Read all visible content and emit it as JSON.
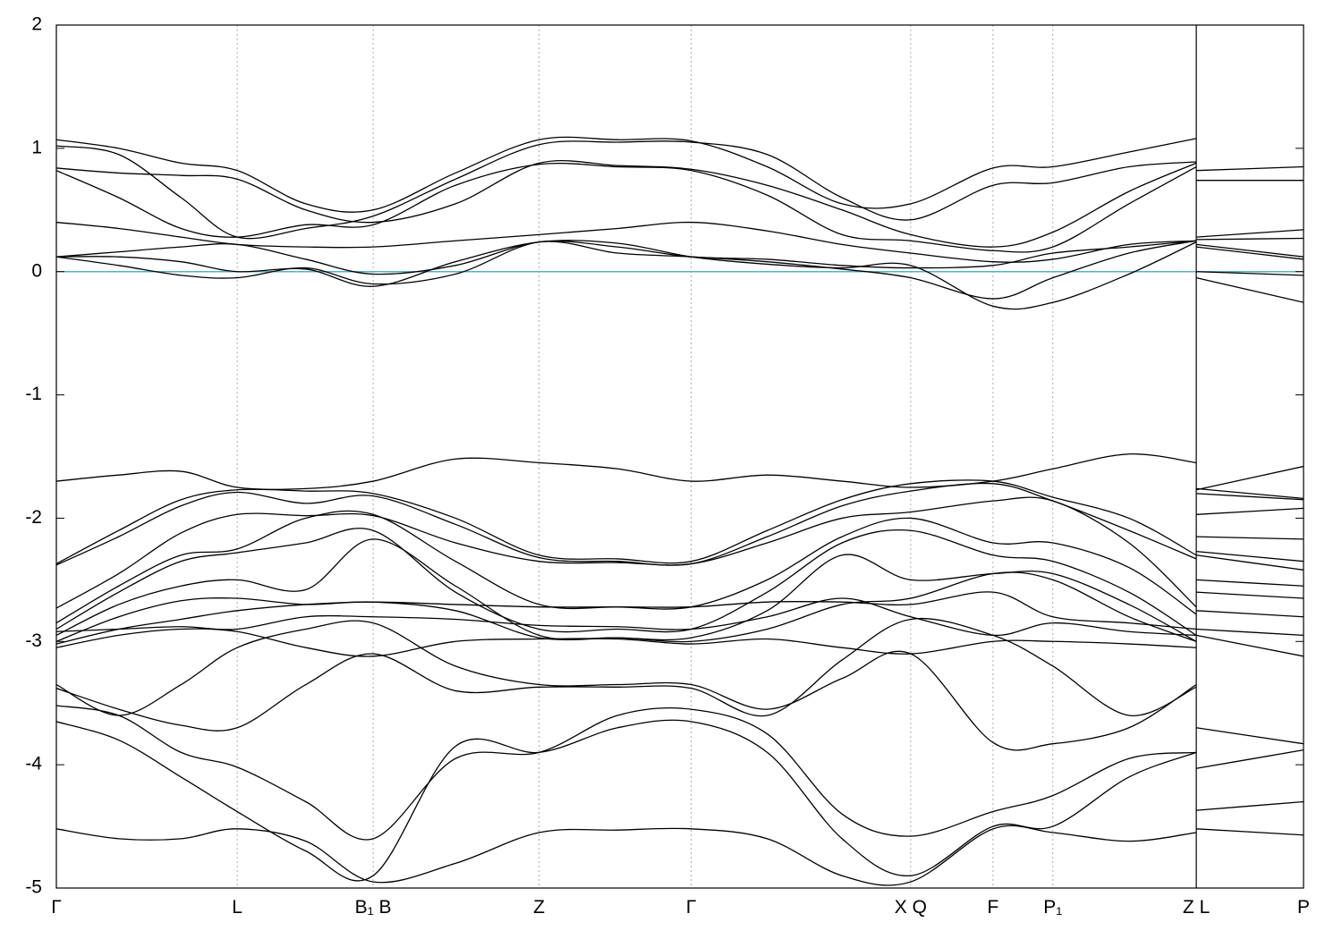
{
  "chart_data": {
    "type": "line",
    "x": [
      0,
      0.05,
      0.1,
      0.145,
      0.2,
      0.254,
      0.32,
      0.387,
      0.45,
      0.509,
      0.57,
      0.63,
      0.685,
      0.751,
      0.799,
      0.86,
      0.914,
      0.914,
      0.914,
      1.0
    ],
    "xlim": [
      0,
      1
    ],
    "xticks": [
      {
        "value": 0,
        "label": "Γ"
      },
      {
        "value": 0.145,
        "label": "L"
      },
      {
        "value": 0.254,
        "label": "B₁ B"
      },
      {
        "value": 0.387,
        "label": "Z"
      },
      {
        "value": 0.509,
        "label": "Γ"
      },
      {
        "value": 0.685,
        "label": "X Q"
      },
      {
        "value": 0.751,
        "label": "F"
      },
      {
        "value": 0.799,
        "label": "P₁"
      },
      {
        "value": 0.914,
        "label": "Z L"
      },
      {
        "value": 1,
        "label": "P"
      }
    ],
    "path_breaks": [
      0.914
    ],
    "ylim": [
      -5,
      2
    ],
    "yticks": [
      -5,
      -4,
      -3,
      -2,
      -1,
      0,
      1,
      2
    ],
    "fermi_level": 0,
    "fermi_color": "#5aaec6",
    "color": "#000000",
    "grid": true,
    "series": [
      {
        "values": [
          1.07,
          1.0,
          0.88,
          0.82,
          0.55,
          0.5,
          0.8,
          1.07,
          1.07,
          1.06,
          0.85,
          0.55,
          0.55,
          0.84,
          0.85,
          0.97,
          1.08,
          null,
          0.82,
          0.85
        ]
      },
      {
        "values": [
          1.02,
          0.95,
          0.6,
          0.28,
          0.35,
          0.45,
          0.75,
          1.03,
          1.05,
          1.05,
          0.95,
          0.6,
          0.42,
          0.7,
          0.72,
          0.85,
          0.89,
          null,
          0.74,
          0.74
        ]
      },
      {
        "values": [
          0.84,
          0.8,
          0.78,
          0.75,
          0.5,
          0.4,
          0.55,
          0.88,
          0.86,
          0.83,
          0.7,
          0.5,
          0.3,
          0.2,
          0.32,
          0.65,
          0.88,
          null,
          0.28,
          0.34
        ]
      },
      {
        "values": [
          0.82,
          0.6,
          0.35,
          0.28,
          0.38,
          0.38,
          0.7,
          0.87,
          0.85,
          0.82,
          0.62,
          0.3,
          0.25,
          0.17,
          0.2,
          0.55,
          0.85,
          null,
          0.26,
          0.27
        ]
      },
      {
        "values": [
          0.4,
          0.35,
          0.28,
          0.22,
          0.2,
          0.2,
          0.25,
          0.3,
          0.35,
          0.4,
          0.33,
          0.22,
          0.15,
          0.08,
          0.1,
          0.22,
          0.25,
          null,
          0.22,
          0.12
        ]
      },
      {
        "values": [
          0.12,
          0.16,
          0.2,
          0.22,
          0.1,
          -0.02,
          0.05,
          0.24,
          0.2,
          0.12,
          0.1,
          0.05,
          0.03,
          0.05,
          0.15,
          0.2,
          0.25,
          null,
          0.2,
          0.1
        ]
      },
      {
        "values": [
          0.12,
          0.05,
          -0.03,
          -0.05,
          0.03,
          -0.1,
          -0.02,
          0.24,
          0.15,
          0.12,
          0.08,
          0.02,
          -0.05,
          -0.22,
          -0.05,
          0.15,
          0.25,
          null,
          -0.05,
          -0.25
        ]
      },
      {
        "values": [
          0.12,
          0.12,
          0.08,
          0,
          0.02,
          -0.12,
          0.08,
          0.24,
          0.23,
          0.12,
          0.06,
          0.03,
          0.05,
          -0.28,
          -0.25,
          -0.02,
          0.24,
          null,
          0.0,
          -0.03
        ]
      },
      {
        "values": [
          -1.7,
          -1.65,
          -1.62,
          -1.75,
          -1.76,
          -1.7,
          -1.52,
          -1.55,
          -1.6,
          -1.7,
          -1.65,
          -1.7,
          -1.75,
          -1.7,
          -1.6,
          -1.48,
          -1.55,
          null,
          -1.77,
          -1.58
        ]
      },
      {
        "values": [
          -2.37,
          -2.1,
          -1.85,
          -1.77,
          -1.78,
          -1.8,
          -2.0,
          -2.3,
          -2.33,
          -2.35,
          -2.1,
          -1.85,
          -1.72,
          -1.7,
          -1.83,
          -2.0,
          -2.3,
          null,
          -1.76,
          -1.84
        ]
      },
      {
        "values": [
          -2.38,
          -2.15,
          -1.9,
          -1.79,
          -1.88,
          -1.82,
          -2.05,
          -2.32,
          -2.35,
          -2.37,
          -2.15,
          -1.9,
          -1.78,
          -1.72,
          -1.86,
          -2.1,
          -2.33,
          null,
          -1.8,
          -1.85
        ]
      },
      {
        "values": [
          -2.73,
          -2.45,
          -2.12,
          -1.97,
          -1.98,
          -1.98,
          -2.2,
          -2.35,
          -2.36,
          -2.37,
          -2.2,
          -2.0,
          -1.95,
          -1.86,
          -1.86,
          -2.2,
          -2.72,
          null,
          -1.97,
          -1.92
        ]
      },
      {
        "values": [
          -2.85,
          -2.55,
          -2.3,
          -2.25,
          -2.0,
          -1.97,
          -2.35,
          -2.7,
          -2.72,
          -2.72,
          -2.5,
          -2.15,
          -2.0,
          -2.2,
          -2.2,
          -2.4,
          -2.78,
          null,
          -2.15,
          -2.17
        ]
      },
      {
        "values": [
          -2.9,
          -2.6,
          -2.35,
          -2.28,
          -2.2,
          -2.1,
          -2.6,
          -2.9,
          -2.9,
          -2.9,
          -2.6,
          -2.2,
          -2.1,
          -2.3,
          -2.35,
          -2.6,
          -2.95,
          null,
          -2.27,
          -2.35
        ]
      },
      {
        "values": [
          -2.95,
          -2.7,
          -2.55,
          -2.5,
          -2.58,
          -2.17,
          -2.55,
          -2.95,
          -2.97,
          -2.97,
          -2.75,
          -2.3,
          -2.5,
          -2.45,
          -2.45,
          -2.7,
          -3.0,
          null,
          -2.3,
          -2.42
        ]
      },
      {
        "values": [
          -3.0,
          -2.8,
          -2.67,
          -2.65,
          -2.7,
          -2.68,
          -2.75,
          -2.97,
          -2.97,
          -3.0,
          -2.9,
          -2.7,
          -2.65,
          -2.45,
          -2.5,
          -2.8,
          -3.0,
          null,
          -2.5,
          -2.55
        ]
      },
      {
        "values": [
          -3.02,
          -2.9,
          -2.82,
          -2.75,
          -2.7,
          -2.68,
          -2.7,
          -2.72,
          -2.72,
          -2.72,
          -2.68,
          -2.68,
          -2.7,
          -2.6,
          -2.8,
          -2.85,
          -2.9,
          null,
          -2.6,
          -2.65
        ]
      },
      {
        "values": [
          -2.92,
          -2.9,
          -2.88,
          -2.9,
          -2.8,
          -2.8,
          -2.82,
          -2.87,
          -2.88,
          -2.9,
          -2.8,
          -2.65,
          -2.8,
          -2.95,
          -2.85,
          -2.92,
          -2.95,
          null,
          -2.75,
          -2.8
        ]
      },
      {
        "values": [
          -3.05,
          -2.95,
          -2.9,
          -2.92,
          -3.05,
          -3.12,
          -3.0,
          -2.98,
          -2.98,
          -3.02,
          -2.98,
          -3.05,
          -3.1,
          -3.0,
          -3.0,
          -3.02,
          -3.05,
          null,
          -2.9,
          -2.95
        ]
      },
      {
        "values": [
          -3.35,
          -3.6,
          -3.35,
          -3.05,
          -2.9,
          -2.85,
          -3.2,
          -3.35,
          -3.35,
          -3.35,
          -3.55,
          -3.3,
          -3.1,
          -3.82,
          -3.83,
          -3.7,
          -3.35,
          null,
          -2.95,
          -3.12
        ]
      },
      {
        "values": [
          -3.38,
          -3.55,
          -3.68,
          -3.7,
          -3.35,
          -3.1,
          -3.4,
          -3.37,
          -3.37,
          -3.38,
          -3.6,
          -3.15,
          -2.82,
          -2.95,
          -3.2,
          -3.6,
          -3.37,
          null,
          -3.7,
          -3.83
        ]
      },
      {
        "values": [
          -3.52,
          -3.6,
          -3.9,
          -4.02,
          -4.3,
          -4.6,
          -3.95,
          -3.9,
          -3.6,
          -3.55,
          -3.75,
          -4.4,
          -4.58,
          -4.38,
          -4.25,
          -3.95,
          -3.9,
          null,
          -4.03,
          -3.88
        ]
      },
      {
        "values": [
          -3.65,
          -3.8,
          -4.1,
          -4.38,
          -4.7,
          -4.9,
          -3.85,
          -3.9,
          -3.7,
          -3.65,
          -3.9,
          -4.6,
          -4.9,
          -4.5,
          -4.5,
          -4.1,
          -3.9,
          null,
          -4.37,
          -4.3
        ]
      },
      {
        "values": [
          -4.52,
          -4.6,
          -4.6,
          -4.52,
          -4.62,
          -4.95,
          -4.8,
          -4.55,
          -4.53,
          -4.52,
          -4.6,
          -4.9,
          -4.95,
          -4.52,
          -4.55,
          -4.62,
          -4.55,
          null,
          -4.52,
          -4.57
        ]
      }
    ]
  }
}
